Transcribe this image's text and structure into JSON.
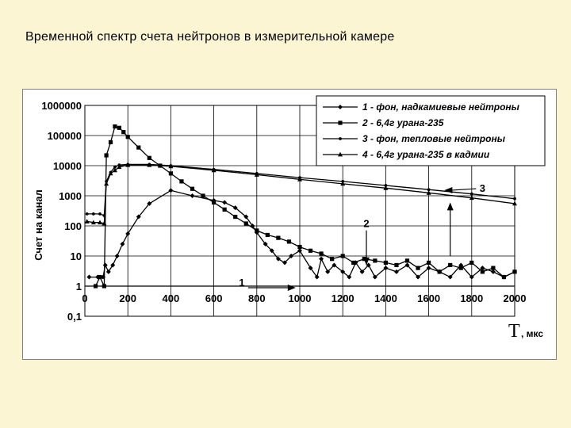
{
  "slide": {
    "title": "Временной спектр счета нейтронов в измерительной камере"
  },
  "chart_data": {
    "type": "line",
    "title": "",
    "xlabel": "Т, мкс",
    "ylabel": "Счет на канал",
    "xlim": [
      0,
      2000
    ],
    "ylim": [
      0.1,
      1000000
    ],
    "yscale": "log",
    "grid": true,
    "legend_position": "top-right",
    "x_ticks": [
      "0",
      "200",
      "400",
      "600",
      "800",
      "1000",
      "1200",
      "1400",
      "1600",
      "1800",
      "2000"
    ],
    "y_ticks": [
      "1000000",
      "100000",
      "10000",
      "1000",
      "100",
      "10",
      "1",
      "0,1"
    ],
    "xlabel_symbol": "Т",
    "xlabel_unit": ", мкс",
    "series": [
      {
        "name": "1 - фон, надкамиевые нейтроны",
        "label": "1",
        "marker": "diamond",
        "color": "#000000",
        "points": [
          [
            20,
            2
          ],
          [
            60,
            2
          ],
          [
            85,
            2
          ],
          [
            95,
            5
          ],
          [
            110,
            3
          ],
          [
            130,
            5
          ],
          [
            150,
            10
          ],
          [
            175,
            25
          ],
          [
            200,
            55
          ],
          [
            250,
            200
          ],
          [
            300,
            550
          ],
          [
            400,
            1500
          ],
          [
            500,
            1000
          ],
          [
            600,
            700
          ],
          [
            650,
            600
          ],
          [
            700,
            400
          ],
          [
            750,
            200
          ],
          [
            780,
            100
          ],
          [
            800,
            60
          ],
          [
            840,
            25
          ],
          [
            870,
            15
          ],
          [
            900,
            8
          ],
          [
            930,
            6
          ],
          [
            960,
            10
          ],
          [
            1000,
            15
          ],
          [
            1050,
            4
          ],
          [
            1080,
            2
          ],
          [
            1100,
            8
          ],
          [
            1130,
            3
          ],
          [
            1160,
            5
          ],
          [
            1200,
            3
          ],
          [
            1230,
            2
          ],
          [
            1260,
            6
          ],
          [
            1290,
            3
          ],
          [
            1320,
            5
          ],
          [
            1350,
            2
          ],
          [
            1400,
            4
          ],
          [
            1450,
            3
          ],
          [
            1500,
            5
          ],
          [
            1550,
            2
          ],
          [
            1600,
            4
          ],
          [
            1650,
            3
          ],
          [
            1700,
            2
          ],
          [
            1750,
            5
          ],
          [
            1800,
            2
          ],
          [
            1850,
            4
          ],
          [
            1900,
            3
          ],
          [
            1950,
            2
          ],
          [
            2000,
            3
          ]
        ]
      },
      {
        "name": "2 - 6,4г урана-235",
        "label": "2",
        "marker": "square",
        "color": "#000000",
        "points": [
          [
            50,
            1
          ],
          [
            70,
            2
          ],
          [
            90,
            1
          ],
          [
            100,
            22000
          ],
          [
            120,
            60000
          ],
          [
            140,
            200000
          ],
          [
            160,
            180000
          ],
          [
            180,
            130000
          ],
          [
            200,
            90000
          ],
          [
            250,
            40000
          ],
          [
            300,
            18000
          ],
          [
            350,
            10000
          ],
          [
            400,
            5500
          ],
          [
            450,
            3000
          ],
          [
            500,
            1700
          ],
          [
            550,
            1000
          ],
          [
            600,
            600
          ],
          [
            650,
            350
          ],
          [
            700,
            200
          ],
          [
            750,
            120
          ],
          [
            800,
            70
          ],
          [
            850,
            50
          ],
          [
            900,
            40
          ],
          [
            950,
            30
          ],
          [
            1000,
            20
          ],
          [
            1050,
            15
          ],
          [
            1100,
            12
          ],
          [
            1150,
            8
          ],
          [
            1200,
            10
          ],
          [
            1250,
            6
          ],
          [
            1300,
            8
          ],
          [
            1350,
            7
          ],
          [
            1400,
            6
          ],
          [
            1450,
            5
          ],
          [
            1500,
            7
          ],
          [
            1550,
            4
          ],
          [
            1600,
            6
          ],
          [
            1650,
            3
          ],
          [
            1700,
            5
          ],
          [
            1750,
            4
          ],
          [
            1800,
            6
          ],
          [
            1850,
            3
          ],
          [
            1900,
            4
          ],
          [
            1950,
            2
          ],
          [
            2000,
            3
          ]
        ]
      },
      {
        "name": "3 - фон, тепловые нейтроны",
        "label": "3",
        "marker": "dot",
        "color": "#000000",
        "points": [
          [
            10,
            250
          ],
          [
            40,
            250
          ],
          [
            70,
            250
          ],
          [
            90,
            220
          ],
          [
            100,
            3000
          ],
          [
            120,
            6000
          ],
          [
            140,
            9000
          ],
          [
            160,
            10500
          ],
          [
            200,
            11000
          ],
          [
            300,
            11000
          ],
          [
            400,
            10000
          ],
          [
            600,
            7500
          ],
          [
            800,
            5500
          ],
          [
            1000,
            4000
          ],
          [
            1200,
            3000
          ],
          [
            1400,
            2200
          ],
          [
            1600,
            1600
          ],
          [
            1800,
            1150
          ],
          [
            2000,
            800
          ]
        ]
      },
      {
        "name": "4 - 6,4г урана-235 в кадмии",
        "label": "4",
        "marker": "triangle",
        "color": "#000000",
        "points": [
          [
            10,
            140
          ],
          [
            40,
            130
          ],
          [
            70,
            130
          ],
          [
            90,
            120
          ],
          [
            100,
            2500
          ],
          [
            120,
            5500
          ],
          [
            140,
            7000
          ],
          [
            160,
            9000
          ],
          [
            200,
            10500
          ],
          [
            300,
            10500
          ],
          [
            400,
            9500
          ],
          [
            600,
            7000
          ],
          [
            800,
            5000
          ],
          [
            1000,
            3500
          ],
          [
            1200,
            2500
          ],
          [
            1400,
            1800
          ],
          [
            1600,
            1250
          ],
          [
            1800,
            850
          ],
          [
            2000,
            550
          ]
        ]
      }
    ],
    "annotations": [
      {
        "text": "1",
        "x": 730,
        "y": 1.0,
        "arrow": "right"
      },
      {
        "text": "2",
        "x": 1310,
        "y": 90,
        "arrow": "down"
      },
      {
        "text": "3",
        "x": 1850,
        "y": 1350,
        "arrow": "left"
      }
    ]
  }
}
